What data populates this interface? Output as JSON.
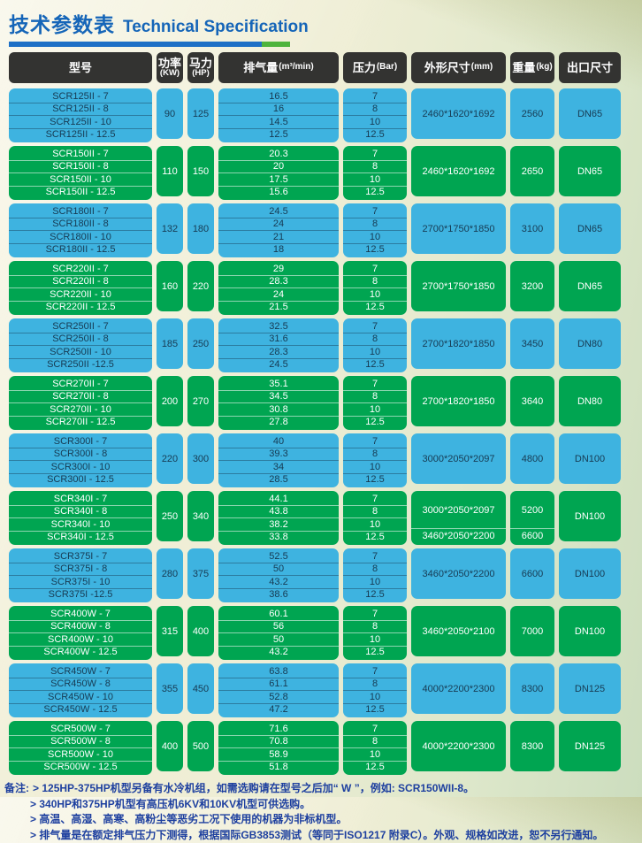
{
  "page": {
    "title_zh": "技术参数表",
    "title_en": "Technical Specification"
  },
  "colors": {
    "row_blue": "#3eb3e0",
    "row_green": "#00a551",
    "header_bg": "#333331",
    "title_blue": "#1565b8",
    "underline_blue": "#1e70c6",
    "underline_green": "#4eb43d",
    "note_blue": "#1d3f9f",
    "row_text_dark": "#173a52"
  },
  "table": {
    "columns": [
      {
        "label": "型号",
        "unit": "",
        "stacked": false
      },
      {
        "label": "功率",
        "unit": "(KW)",
        "stacked": true
      },
      {
        "label": "马力",
        "unit": "(HP)",
        "stacked": true
      },
      {
        "label": "排气量",
        "unit": "(m³/min)",
        "stacked": false
      },
      {
        "label": "压力",
        "unit": "(Bar)",
        "stacked": false
      },
      {
        "label": "外形尺寸",
        "unit": "(mm)",
        "stacked": false
      },
      {
        "label": "重量",
        "unit": "(kg)",
        "stacked": false
      },
      {
        "label": "出口尺寸",
        "unit": "",
        "stacked": false
      }
    ],
    "groups": [
      {
        "color": "blue",
        "models": [
          "SCR125II - 7",
          "SCR125II - 8",
          "SCR125II - 10",
          "SCR125II - 12.5"
        ],
        "power_kw": "90",
        "horsepower_hp": "125",
        "flow_m3min": [
          "16.5",
          "16",
          "14.5",
          "12.5"
        ],
        "pressure_bar": [
          "7",
          "8",
          "10",
          "12.5"
        ],
        "dimensions_mm": [
          "2460*1620*1692"
        ],
        "weight_kg": [
          "2560"
        ],
        "outlet": "DN65"
      },
      {
        "color": "green",
        "models": [
          "SCR150II - 7",
          "SCR150II - 8",
          "SCR150II - 10",
          "SCR150II - 12.5"
        ],
        "power_kw": "110",
        "horsepower_hp": "150",
        "flow_m3min": [
          "20.3",
          "20",
          "17.5",
          "15.6"
        ],
        "pressure_bar": [
          "7",
          "8",
          "10",
          "12.5"
        ],
        "dimensions_mm": [
          "2460*1620*1692"
        ],
        "weight_kg": [
          "2650"
        ],
        "outlet": "DN65"
      },
      {
        "color": "blue",
        "models": [
          "SCR180II - 7",
          "SCR180II - 8",
          "SCR180II - 10",
          "SCR180II - 12.5"
        ],
        "power_kw": "132",
        "horsepower_hp": "180",
        "flow_m3min": [
          "24.5",
          "24",
          "21",
          "18"
        ],
        "pressure_bar": [
          "7",
          "8",
          "10",
          "12.5"
        ],
        "dimensions_mm": [
          "2700*1750*1850"
        ],
        "weight_kg": [
          "3100"
        ],
        "outlet": "DN65"
      },
      {
        "color": "green",
        "models": [
          "SCR220II - 7",
          "SCR220II - 8",
          "SCR220II - 10",
          "SCR220II - 12.5"
        ],
        "power_kw": "160",
        "horsepower_hp": "220",
        "flow_m3min": [
          "29",
          "28.3",
          "24",
          "21.5"
        ],
        "pressure_bar": [
          "7",
          "8",
          "10",
          "12.5"
        ],
        "dimensions_mm": [
          "2700*1750*1850"
        ],
        "weight_kg": [
          "3200"
        ],
        "outlet": "DN65"
      },
      {
        "color": "blue",
        "models": [
          "SCR250II - 7",
          "SCR250II - 8",
          "SCR250II - 10",
          "SCR250II -12.5"
        ],
        "power_kw": "185",
        "horsepower_hp": "250",
        "flow_m3min": [
          "32.5",
          "31.6",
          "28.3",
          "24.5"
        ],
        "pressure_bar": [
          "7",
          "8",
          "10",
          "12.5"
        ],
        "dimensions_mm": [
          "2700*1820*1850"
        ],
        "weight_kg": [
          "3450"
        ],
        "outlet": "DN80"
      },
      {
        "color": "green",
        "models": [
          "SCR270II - 7",
          "SCR270II - 8",
          "SCR270II - 10",
          "SCR270II - 12.5"
        ],
        "power_kw": "200",
        "horsepower_hp": "270",
        "flow_m3min": [
          "35.1",
          "34.5",
          "30.8",
          "27.8"
        ],
        "pressure_bar": [
          "7",
          "8",
          "10",
          "12.5"
        ],
        "dimensions_mm": [
          "2700*1820*1850"
        ],
        "weight_kg": [
          "3640"
        ],
        "outlet": "DN80"
      },
      {
        "color": "blue",
        "models": [
          "SCR300I - 7",
          "SCR300I - 8",
          "SCR300I - 10",
          "SCR300I - 12.5"
        ],
        "power_kw": "220",
        "horsepower_hp": "300",
        "flow_m3min": [
          "40",
          "39.3",
          "34",
          "28.5"
        ],
        "pressure_bar": [
          "7",
          "8",
          "10",
          "12.5"
        ],
        "dimensions_mm": [
          "3000*2050*2097"
        ],
        "weight_kg": [
          "4800"
        ],
        "outlet": "DN100"
      },
      {
        "color": "green",
        "models": [
          "SCR340I - 7",
          "SCR340I - 8",
          "SCR340I - 10",
          "SCR340I - 12.5"
        ],
        "power_kw": "250",
        "horsepower_hp": "340",
        "flow_m3min": [
          "44.1",
          "43.8",
          "38.2",
          "33.8"
        ],
        "pressure_bar": [
          "7",
          "8",
          "10",
          "12.5"
        ],
        "dimensions_mm": [
          "3000*2050*2097",
          "3460*2050*2200"
        ],
        "weight_kg": [
          "5200",
          "6600"
        ],
        "outlet": "DN100"
      },
      {
        "color": "blue",
        "models": [
          "SCR375I - 7",
          "SCR375I - 8",
          "SCR375I - 10",
          "SCR375I -12.5"
        ],
        "power_kw": "280",
        "horsepower_hp": "375",
        "flow_m3min": [
          "52.5",
          "50",
          "43.2",
          "38.6"
        ],
        "pressure_bar": [
          "7",
          "8",
          "10",
          "12.5"
        ],
        "dimensions_mm": [
          "3460*2050*2200"
        ],
        "weight_kg": [
          "6600"
        ],
        "outlet": "DN100"
      },
      {
        "color": "green",
        "models": [
          "SCR400W - 7",
          "SCR400W - 8",
          "SCR400W - 10",
          "SCR400W - 12.5"
        ],
        "power_kw": "315",
        "horsepower_hp": "400",
        "flow_m3min": [
          "60.1",
          "56",
          "50",
          "43.2"
        ],
        "pressure_bar": [
          "7",
          "8",
          "10",
          "12.5"
        ],
        "dimensions_mm": [
          "3460*2050*2100"
        ],
        "weight_kg": [
          "7000"
        ],
        "outlet": "DN100"
      },
      {
        "color": "blue",
        "models": [
          "SCR450W - 7",
          "SCR450W - 8",
          "SCR450W - 10",
          "SCR450W - 12.5"
        ],
        "power_kw": "355",
        "horsepower_hp": "450",
        "flow_m3min": [
          "63.8",
          "61.1",
          "52.8",
          "47.2"
        ],
        "pressure_bar": [
          "7",
          "8",
          "10",
          "12.5"
        ],
        "dimensions_mm": [
          "4000*2200*2300"
        ],
        "weight_kg": [
          "8300"
        ],
        "outlet": "DN125"
      },
      {
        "color": "green",
        "models": [
          "SCR500W - 7",
          "SCR500W - 8",
          "SCR500W - 10",
          "SCR500W - 12.5"
        ],
        "power_kw": "400",
        "horsepower_hp": "500",
        "flow_m3min": [
          "71.6",
          "70.8",
          "58.9",
          "51.8"
        ],
        "pressure_bar": [
          "7",
          "8",
          "10",
          "12.5"
        ],
        "dimensions_mm": [
          "4000*2200*2300"
        ],
        "weight_kg": [
          "8300"
        ],
        "outlet": "DN125"
      }
    ]
  },
  "notes": {
    "prefix": "备注:",
    "items": [
      "> 125HP-375HP机型另备有水冷机组，如需选购请在型号之后加“ W ”，例如: SCR150WII-8。",
      "> 340HP和375HP机型有高压机6KV和10KV机型可供选购。",
      "> 高温、高湿、高寒、高粉尘等恶劣工况下使用的机器为非标机型。",
      "> 排气量是在额定排气压力下测得，根据国际GB3853测试（等同于ISO1217 附录C）。外观、规格如改进，恕不另行通知。"
    ]
  }
}
